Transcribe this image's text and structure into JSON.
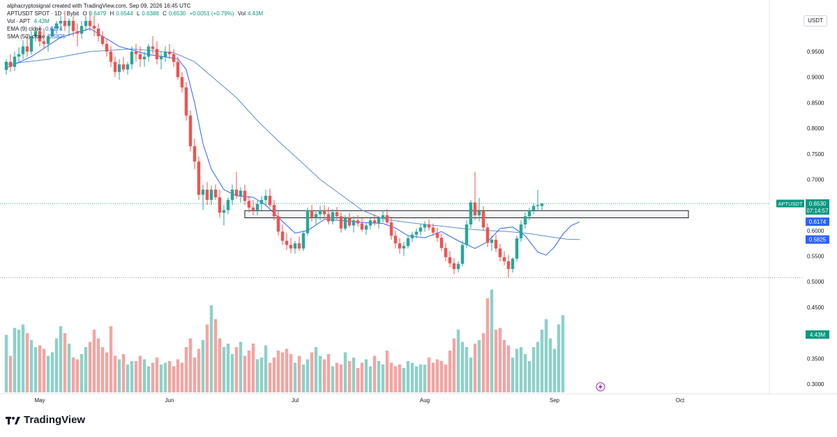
{
  "header": {
    "credit": "alphacryptosignal created with TradingView.com, Sep 09, 2026 16:45 UTC",
    "symbol_line": "APTUSDT SPOT · 1D · Bybit",
    "o_label": "O",
    "o_value": "0.6479",
    "h_label": "H",
    "h_value": "0.6544",
    "l_label": "L",
    "l_value": "0.6388",
    "c_label": "C",
    "c_value": "0.6530",
    "change": "+0.0051 (+0.79%)",
    "vol_label": "Vol",
    "vol_value": "4.43M",
    "vol_line_label": "Vol · APT",
    "vol_line_value": "4.43M",
    "ema_label": "EMA (9) close",
    "ema_value": "0.6174",
    "sma_label": "SMA (50) close",
    "sma_value": "0.5825"
  },
  "currency_button": "USDT",
  "watermark": "TradingView",
  "colors": {
    "up": "#26a69a",
    "down": "#ef5350",
    "vol_up": "#8ed0c8",
    "vol_down": "#f4a4a2",
    "ema": "#2962ff",
    "sma": "#5b8fd6",
    "label_price": "#089981",
    "label_ema": "#2962ff"
  },
  "chart_data": {
    "type": "candlestick",
    "symbol": "APTUSDT",
    "interval": "1D",
    "ylim": [
      0.28,
      1.0
    ],
    "price_ticks": [
      "0.9500",
      "0.9000",
      "0.8500",
      "0.8000",
      "0.7500",
      "0.7000",
      "0.6500",
      "0.6000",
      "0.5500",
      "0.5000",
      "0.4500",
      "0.4000",
      "0.3500",
      "0.3000"
    ],
    "x_ticks": [
      "May",
      "Jun",
      "Jul",
      "Aug",
      "Sep",
      "Oct"
    ],
    "x_tick_days": [
      8,
      39,
      69,
      100,
      131,
      161
    ],
    "last_price": "0.6530",
    "countdown": "07:14:57",
    "ema_label": "0.6174",
    "sma_label": "0.5825",
    "volume_label": "4.43M",
    "support_zone": [
      0.625,
      0.639
    ],
    "support_zone_days": [
      57,
      163
    ],
    "candles_ohlc": [
      [
        0.914,
        0.935,
        0.905,
        0.93
      ],
      [
        0.93,
        0.945,
        0.91,
        0.92
      ],
      [
        0.92,
        0.95,
        0.912,
        0.94
      ],
      [
        0.94,
        0.958,
        0.93,
        0.945
      ],
      [
        0.945,
        0.972,
        0.935,
        0.96
      ],
      [
        0.96,
        0.98,
        0.94,
        0.95
      ],
      [
        0.95,
        0.99,
        0.944,
        0.98
      ],
      [
        0.98,
        1.0,
        0.97,
        0.99
      ],
      [
        0.99,
        1.0,
        0.96,
        0.97
      ],
      [
        0.97,
        0.995,
        0.955,
        0.965
      ],
      [
        0.965,
        0.985,
        0.95,
        0.98
      ],
      [
        0.98,
        1.0,
        0.975,
        0.995
      ],
      [
        0.995,
        1.01,
        0.985,
        1.005
      ],
      [
        1.005,
        1.02,
        0.99,
        1.01
      ],
      [
        1.01,
        1.03,
        0.99,
        1.0
      ],
      [
        1.0,
        1.015,
        0.98,
        1.01
      ],
      [
        1.01,
        1.02,
        0.98,
        0.99
      ],
      [
        0.99,
        1.005,
        0.96,
        0.985
      ],
      [
        0.985,
        1.01,
        0.975,
        1.0
      ],
      [
        1.0,
        1.02,
        0.99,
        1.01
      ],
      [
        1.01,
        1.03,
        0.99,
        1.0
      ],
      [
        1.0,
        1.02,
        0.98,
        0.995
      ],
      [
        0.995,
        1.005,
        0.97,
        0.98
      ],
      [
        0.98,
        0.99,
        0.96,
        0.965
      ],
      [
        0.965,
        0.975,
        0.94,
        0.95
      ],
      [
        0.95,
        0.96,
        0.92,
        0.93
      ],
      [
        0.93,
        0.94,
        0.9,
        0.91
      ],
      [
        0.91,
        0.935,
        0.895,
        0.925
      ],
      [
        0.925,
        0.94,
        0.91,
        0.915
      ],
      [
        0.915,
        0.93,
        0.905,
        0.925
      ],
      [
        0.925,
        0.96,
        0.915,
        0.95
      ],
      [
        0.95,
        0.965,
        0.93,
        0.945
      ],
      [
        0.945,
        0.96,
        0.92,
        0.935
      ],
      [
        0.935,
        0.95,
        0.92,
        0.94
      ],
      [
        0.94,
        0.965,
        0.93,
        0.96
      ],
      [
        0.96,
        0.98,
        0.945,
        0.955
      ],
      [
        0.955,
        0.97,
        0.925,
        0.935
      ],
      [
        0.935,
        0.95,
        0.915,
        0.94
      ],
      [
        0.94,
        0.96,
        0.93,
        0.95
      ],
      [
        0.95,
        0.965,
        0.935,
        0.945
      ],
      [
        0.945,
        0.955,
        0.92,
        0.93
      ],
      [
        0.93,
        0.94,
        0.895,
        0.9
      ],
      [
        0.9,
        0.91,
        0.87,
        0.88
      ],
      [
        0.88,
        0.89,
        0.815,
        0.825
      ],
      [
        0.825,
        0.835,
        0.755,
        0.765
      ],
      [
        0.765,
        0.78,
        0.72,
        0.735
      ],
      [
        0.735,
        0.745,
        0.66,
        0.67
      ],
      [
        0.67,
        0.69,
        0.64,
        0.68
      ],
      [
        0.68,
        0.695,
        0.65,
        0.66
      ],
      [
        0.66,
        0.688,
        0.65,
        0.68
      ],
      [
        0.68,
        0.69,
        0.66,
        0.665
      ],
      [
        0.665,
        0.68,
        0.625,
        0.635
      ],
      [
        0.635,
        0.65,
        0.61,
        0.64
      ],
      [
        0.64,
        0.665,
        0.632,
        0.66
      ],
      [
        0.66,
        0.69,
        0.65,
        0.68
      ],
      [
        0.68,
        0.715,
        0.662,
        0.668
      ],
      [
        0.668,
        0.685,
        0.655,
        0.678
      ],
      [
        0.678,
        0.69,
        0.65,
        0.658
      ],
      [
        0.658,
        0.668,
        0.635,
        0.645
      ],
      [
        0.645,
        0.66,
        0.63,
        0.64
      ],
      [
        0.64,
        0.658,
        0.63,
        0.652
      ],
      [
        0.652,
        0.668,
        0.64,
        0.66
      ],
      [
        0.66,
        0.68,
        0.648,
        0.668
      ],
      [
        0.668,
        0.682,
        0.645,
        0.65
      ],
      [
        0.65,
        0.66,
        0.62,
        0.628
      ],
      [
        0.628,
        0.64,
        0.59,
        0.598
      ],
      [
        0.598,
        0.612,
        0.572,
        0.58
      ],
      [
        0.58,
        0.595,
        0.562,
        0.572
      ],
      [
        0.572,
        0.586,
        0.556,
        0.565
      ],
      [
        0.565,
        0.58,
        0.555,
        0.575
      ],
      [
        0.575,
        0.588,
        0.56,
        0.565
      ],
      [
        0.565,
        0.6,
        0.56,
        0.595
      ],
      [
        0.595,
        0.645,
        0.59,
        0.64
      ],
      [
        0.64,
        0.65,
        0.618,
        0.625
      ],
      [
        0.625,
        0.64,
        0.612,
        0.632
      ],
      [
        0.632,
        0.648,
        0.62,
        0.64
      ],
      [
        0.64,
        0.65,
        0.625,
        0.632
      ],
      [
        0.632,
        0.646,
        0.612,
        0.618
      ],
      [
        0.618,
        0.642,
        0.612,
        0.636
      ],
      [
        0.636,
        0.646,
        0.622,
        0.628
      ],
      [
        0.628,
        0.635,
        0.596,
        0.604
      ],
      [
        0.604,
        0.63,
        0.6,
        0.625
      ],
      [
        0.625,
        0.634,
        0.606,
        0.61
      ],
      [
        0.61,
        0.628,
        0.596,
        0.62
      ],
      [
        0.62,
        0.63,
        0.608,
        0.614
      ],
      [
        0.614,
        0.624,
        0.598,
        0.602
      ],
      [
        0.602,
        0.616,
        0.592,
        0.61
      ],
      [
        0.61,
        0.624,
        0.602,
        0.62
      ],
      [
        0.62,
        0.632,
        0.61,
        0.615
      ],
      [
        0.615,
        0.628,
        0.604,
        0.624
      ],
      [
        0.624,
        0.64,
        0.616,
        0.63
      ],
      [
        0.63,
        0.642,
        0.61,
        0.616
      ],
      [
        0.616,
        0.624,
        0.582,
        0.59
      ],
      [
        0.59,
        0.6,
        0.565,
        0.575
      ],
      [
        0.575,
        0.585,
        0.555,
        0.565
      ],
      [
        0.565,
        0.578,
        0.55,
        0.57
      ],
      [
        0.57,
        0.59,
        0.565,
        0.585
      ],
      [
        0.585,
        0.598,
        0.578,
        0.592
      ],
      [
        0.592,
        0.604,
        0.585,
        0.598
      ],
      [
        0.598,
        0.612,
        0.59,
        0.606
      ],
      [
        0.606,
        0.618,
        0.598,
        0.612
      ],
      [
        0.612,
        0.622,
        0.6,
        0.606
      ],
      [
        0.606,
        0.614,
        0.59,
        0.596
      ],
      [
        0.596,
        0.606,
        0.578,
        0.586
      ],
      [
        0.586,
        0.594,
        0.56,
        0.566
      ],
      [
        0.566,
        0.576,
        0.54,
        0.548
      ],
      [
        0.548,
        0.56,
        0.528,
        0.536
      ],
      [
        0.536,
        0.546,
        0.515,
        0.525
      ],
      [
        0.525,
        0.54,
        0.518,
        0.535
      ],
      [
        0.535,
        0.58,
        0.53,
        0.572
      ],
      [
        0.572,
        0.62,
        0.566,
        0.612
      ],
      [
        0.612,
        0.66,
        0.605,
        0.655
      ],
      [
        0.655,
        0.715,
        0.62,
        0.63
      ],
      [
        0.63,
        0.664,
        0.618,
        0.638
      ],
      [
        0.638,
        0.648,
        0.6,
        0.606
      ],
      [
        0.606,
        0.614,
        0.568,
        0.576
      ],
      [
        0.576,
        0.59,
        0.56,
        0.582
      ],
      [
        0.582,
        0.592,
        0.558,
        0.565
      ],
      [
        0.565,
        0.574,
        0.54,
        0.548
      ],
      [
        0.548,
        0.56,
        0.532,
        0.54
      ],
      [
        0.54,
        0.552,
        0.508,
        0.525
      ],
      [
        0.525,
        0.548,
        0.518,
        0.545
      ],
      [
        0.545,
        0.59,
        0.54,
        0.585
      ],
      [
        0.585,
        0.62,
        0.578,
        0.612
      ],
      [
        0.612,
        0.635,
        0.604,
        0.628
      ],
      [
        0.628,
        0.645,
        0.62,
        0.64
      ],
      [
        0.64,
        0.654,
        0.632,
        0.648
      ],
      [
        0.648,
        0.68,
        0.638,
        0.65
      ],
      [
        0.648,
        0.654,
        0.639,
        0.653
      ]
    ],
    "candles_start_day": 0,
    "candles_end_day": 133,
    "volumes_millions": [
      3.3,
      2.1,
      3.7,
      3.6,
      3.9,
      3.4,
      3.0,
      2.6,
      2.7,
      2.5,
      2.1,
      2.3,
      3.1,
      3.8,
      3.4,
      2.8,
      2.0,
      1.9,
      2.2,
      2.6,
      2.9,
      3.6,
      3.1,
      2.6,
      2.3,
      3.8,
      2.1,
      1.9,
      2.2,
      1.6,
      1.8,
      1.8,
      2.1,
      1.9,
      1.5,
      1.7,
      2.0,
      1.6,
      1.7,
      1.8,
      1.5,
      1.9,
      1.7,
      2.6,
      3.1,
      2.0,
      2.5,
      3.0,
      3.9,
      5.0,
      4.2,
      3.1,
      2.6,
      2.8,
      2.2,
      2.6,
      2.9,
      2.1,
      2.4,
      2.8,
      1.9,
      2.0,
      2.7,
      1.7,
      2.0,
      2.4,
      2.3,
      2.5,
      2.2,
      1.7,
      2.1,
      1.6,
      1.9,
      2.3,
      2.6,
      2.1,
      1.9,
      2.2,
      1.5,
      1.7,
      1.6,
      2.3,
      1.8,
      2.0,
      1.4,
      1.7,
      1.9,
      1.5,
      2.1,
      1.8,
      1.6,
      2.4,
      1.7,
      1.5,
      1.6,
      1.4,
      1.8,
      1.7,
      1.5,
      1.6,
      1.6,
      2.0,
      1.7,
      1.9,
      1.8,
      1.6,
      2.4,
      3.1,
      3.6,
      2.9,
      2.6,
      2.0,
      2.8,
      3.0,
      3.4,
      5.4,
      5.9,
      3.6,
      3.7,
      3.0,
      2.7,
      2.0,
      2.5,
      2.6,
      2.2,
      1.8,
      2.6,
      2.9,
      3.6,
      4.2,
      3.1,
      2.5,
      3.9,
      4.43
    ],
    "volume_ymax_millions": 6.0,
    "ema9": [
      [
        0,
        0.918
      ],
      [
        6,
        0.94
      ],
      [
        13,
        0.978
      ],
      [
        20,
        0.995
      ],
      [
        27,
        0.96
      ],
      [
        34,
        0.944
      ],
      [
        41,
        0.936
      ],
      [
        43,
        0.915
      ],
      [
        45,
        0.85
      ],
      [
        47,
        0.77
      ],
      [
        49,
        0.72
      ],
      [
        52,
        0.68
      ],
      [
        55,
        0.668
      ],
      [
        59,
        0.665
      ],
      [
        62,
        0.65
      ],
      [
        66,
        0.618
      ],
      [
        69,
        0.595
      ],
      [
        72,
        0.6
      ],
      [
        76,
        0.622
      ],
      [
        80,
        0.62
      ],
      [
        85,
        0.616
      ],
      [
        90,
        0.614
      ],
      [
        93,
        0.605
      ],
      [
        96,
        0.59
      ],
      [
        100,
        0.586
      ],
      [
        104,
        0.598
      ],
      [
        108,
        0.58
      ],
      [
        112,
        0.565
      ],
      [
        115,
        0.578
      ],
      [
        118,
        0.604
      ],
      [
        121,
        0.607
      ],
      [
        124,
        0.59
      ],
      [
        127,
        0.558
      ],
      [
        129,
        0.552
      ],
      [
        131,
        0.568
      ],
      [
        133,
        0.593
      ],
      [
        135,
        0.61
      ],
      [
        137,
        0.617
      ]
    ],
    "sma50": [
      [
        0,
        0.925
      ],
      [
        10,
        0.935
      ],
      [
        20,
        0.95
      ],
      [
        30,
        0.955
      ],
      [
        40,
        0.948
      ],
      [
        45,
        0.93
      ],
      [
        50,
        0.895
      ],
      [
        55,
        0.86
      ],
      [
        60,
        0.815
      ],
      [
        65,
        0.775
      ],
      [
        70,
        0.738
      ],
      [
        75,
        0.7
      ],
      [
        80,
        0.67
      ],
      [
        85,
        0.64
      ],
      [
        90,
        0.623
      ],
      [
        95,
        0.617
      ],
      [
        100,
        0.612
      ],
      [
        105,
        0.608
      ],
      [
        110,
        0.603
      ],
      [
        115,
        0.6
      ],
      [
        120,
        0.598
      ],
      [
        125,
        0.594
      ],
      [
        130,
        0.588
      ],
      [
        134,
        0.583
      ],
      [
        137,
        0.5825
      ]
    ],
    "horizontal_dotted_price": 0.653,
    "horizontal_low_line": 0.508
  }
}
